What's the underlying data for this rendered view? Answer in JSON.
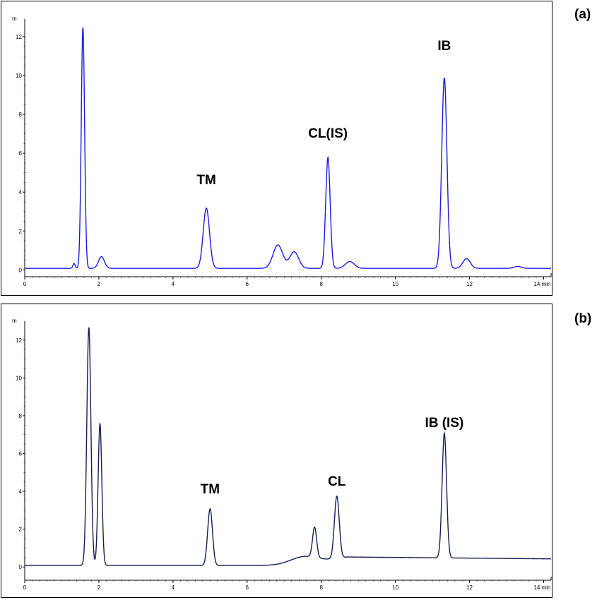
{
  "figure": {
    "panel_a_tag": "(a)",
    "panel_b_tag": "(b)"
  },
  "chart_data": [
    {
      "type": "line",
      "panel": "(a)",
      "xlabel": "",
      "x_unit": "min",
      "ylabel": "",
      "y_unit": "",
      "xlim": [
        0,
        14.2
      ],
      "ylim": [
        -0.35,
        12.9
      ],
      "x_ticks": [
        0,
        2,
        4,
        6,
        8,
        10,
        12,
        14
      ],
      "x_tick_labels": [
        "0",
        "2",
        "4",
        "6",
        "8",
        "10",
        "12",
        "14 min"
      ],
      "y_ticks": [
        0,
        2,
        4,
        6,
        8,
        10,
        12
      ],
      "y_tick_labels": [
        "0",
        "2",
        "4",
        "6",
        "8",
        "10",
        "12"
      ],
      "y_unit_glyph": "m",
      "line_color": "#1a1ae6",
      "baseline": 0.08,
      "peaks": [
        {
          "label": "",
          "rt": 1.33,
          "height": 0.25,
          "width": 0.03
        },
        {
          "label": "",
          "rt": 1.57,
          "height": 12.4,
          "width": 0.045
        },
        {
          "label": "",
          "rt": 2.07,
          "height": 0.6,
          "width": 0.08
        },
        {
          "label": "TM",
          "rt": 4.9,
          "height": 3.1,
          "width": 0.085
        },
        {
          "label": "",
          "rt": 6.83,
          "height": 1.2,
          "width": 0.13
        },
        {
          "label": "",
          "rt": 7.27,
          "height": 0.85,
          "width": 0.12
        },
        {
          "label": "CL(IS)",
          "rt": 8.18,
          "height": 5.7,
          "width": 0.06
        },
        {
          "label": "",
          "rt": 8.77,
          "height": 0.35,
          "width": 0.12
        },
        {
          "label": "IB",
          "rt": 11.32,
          "height": 9.8,
          "width": 0.07
        },
        {
          "label": "",
          "rt": 11.92,
          "height": 0.5,
          "width": 0.1
        },
        {
          "label": "",
          "rt": 13.3,
          "height": 0.1,
          "width": 0.1
        }
      ],
      "annotations": [
        {
          "text": "TM",
          "x": 4.9,
          "y": 4.4
        },
        {
          "text": "CL(IS)",
          "x": 8.18,
          "y": 6.8
        },
        {
          "text": "IB",
          "x": 11.32,
          "y": 11.3
        }
      ]
    },
    {
      "type": "line",
      "panel": "(b)",
      "xlabel": "",
      "x_unit": "min",
      "ylabel": "",
      "y_unit": "",
      "xlim": [
        0,
        14.2
      ],
      "ylim": [
        -0.7,
        13.0
      ],
      "x_ticks": [
        0,
        2,
        4,
        6,
        8,
        10,
        12,
        14
      ],
      "x_tick_labels": [
        "0",
        "2",
        "4",
        "6",
        "8",
        "10",
        "12",
        "14 min"
      ],
      "y_ticks": [
        0,
        2,
        4,
        6,
        8,
        10,
        12
      ],
      "y_tick_labels": [
        "0",
        "2",
        "4",
        "6",
        "8",
        "10",
        "12"
      ],
      "y_unit_glyph": "m",
      "line_color": "#141e50",
      "baseline": 0.08,
      "peaks": [
        {
          "label": "",
          "rt": 1.73,
          "height": 12.6,
          "width": 0.055
        },
        {
          "label": "",
          "rt": 2.03,
          "height": 7.5,
          "width": 0.05
        },
        {
          "label": "TM",
          "rt": 5.0,
          "height": 3.0,
          "width": 0.065
        },
        {
          "label": "",
          "rt": 7.52,
          "height": 0.35,
          "width": 0.35
        },
        {
          "label": "",
          "rt": 7.82,
          "height": 1.6,
          "width": 0.055
        },
        {
          "label": "CL",
          "rt": 8.42,
          "height": 3.3,
          "width": 0.065
        },
        {
          "label": "IB (IS)",
          "rt": 11.32,
          "height": 6.6,
          "width": 0.06
        }
      ],
      "drift": {
        "start": 6.2,
        "plateau": 8.7,
        "plateau_level": 0.45,
        "end_level": 0.35
      },
      "annotations": [
        {
          "text": "TM",
          "x": 5.0,
          "y": 3.9
        },
        {
          "text": "CL",
          "x": 8.42,
          "y": 4.3
        },
        {
          "text": "IB (IS)",
          "x": 11.32,
          "y": 7.4
        }
      ]
    }
  ]
}
